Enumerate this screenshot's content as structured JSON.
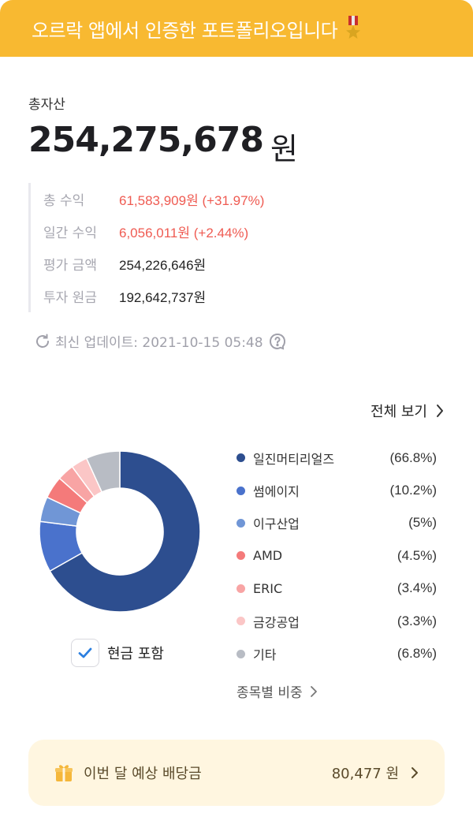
{
  "banner": {
    "text": "오르락 앱에서 인증한 포트폴리오입니다"
  },
  "total": {
    "label": "총자산",
    "value": "254,275,678",
    "unit": "원"
  },
  "stats": [
    {
      "label": "총 수익",
      "value": "61,583,909원 (+31.97%)",
      "tone": "red"
    },
    {
      "label": "일간 수익",
      "value": "6,056,011원 (+2.44%)",
      "tone": "red"
    },
    {
      "label": "평가 금액",
      "value": "254,226,646원",
      "tone": "normal"
    },
    {
      "label": "투자 원금",
      "value": "192,642,737원",
      "tone": "normal"
    }
  ],
  "update": {
    "text": "최신 업데이트: 2021-10-15 05:48"
  },
  "view_all": {
    "label": "전체 보기"
  },
  "cash_toggle": {
    "label": "현금 포함",
    "checked": true
  },
  "chart_data": {
    "type": "pie",
    "categories": [
      "일진머티리얼즈",
      "썸에이지",
      "이구산업",
      "AMD",
      "ERIC",
      "금강공업",
      "기타"
    ],
    "values": [
      66.8,
      10.2,
      5,
      4.5,
      3.4,
      3.3,
      6.8
    ],
    "labels": [
      "(66.8%)",
      "(10.2%)",
      "(5%)",
      "(4.5%)",
      "(3.4%)",
      "(3.3%)",
      "(6.8%)"
    ],
    "colors": [
      "#2d4e8f",
      "#4a72cc",
      "#7096d6",
      "#f47a7a",
      "#f8a4a4",
      "#fbc6c6",
      "#b8bcc4"
    ]
  },
  "by_stock": {
    "label": "종목별 비중"
  },
  "dividend": {
    "label": "이번 달 예상 배당금",
    "amount": "80,477 원"
  }
}
